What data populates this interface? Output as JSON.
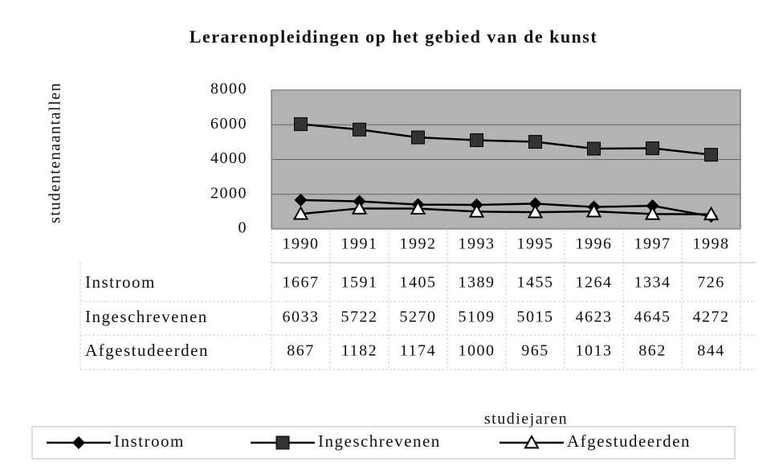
{
  "chart_data": {
    "type": "line",
    "title": "Lerarenopleidingen op het gebied van de kunst",
    "y_label": "studentenaantallen",
    "x_label": "studiejaren",
    "categories": [
      "1990",
      "1991",
      "1992",
      "1993",
      "1995",
      "1996",
      "1997",
      "1998"
    ],
    "series": [
      {
        "name": "Instroom",
        "color": "#000000",
        "marker": "diamond",
        "values": [
          1667,
          1591,
          1405,
          1389,
          1455,
          1264,
          1334,
          726
        ]
      },
      {
        "name": "Ingeschrevenen",
        "color": "#000000",
        "marker": "square",
        "values": [
          6033,
          5722,
          5270,
          5109,
          5015,
          4623,
          4645,
          4272
        ]
      },
      {
        "name": "Afgestudeerden",
        "color": "#000000",
        "marker": "triangle",
        "values": [
          867,
          1182,
          1174,
          1000,
          965,
          1013,
          862,
          844
        ]
      }
    ],
    "ylim": [
      0,
      8000
    ],
    "yticks": [
      0,
      2000,
      4000,
      6000,
      8000
    ],
    "grid": true,
    "legend": "bottom"
  }
}
